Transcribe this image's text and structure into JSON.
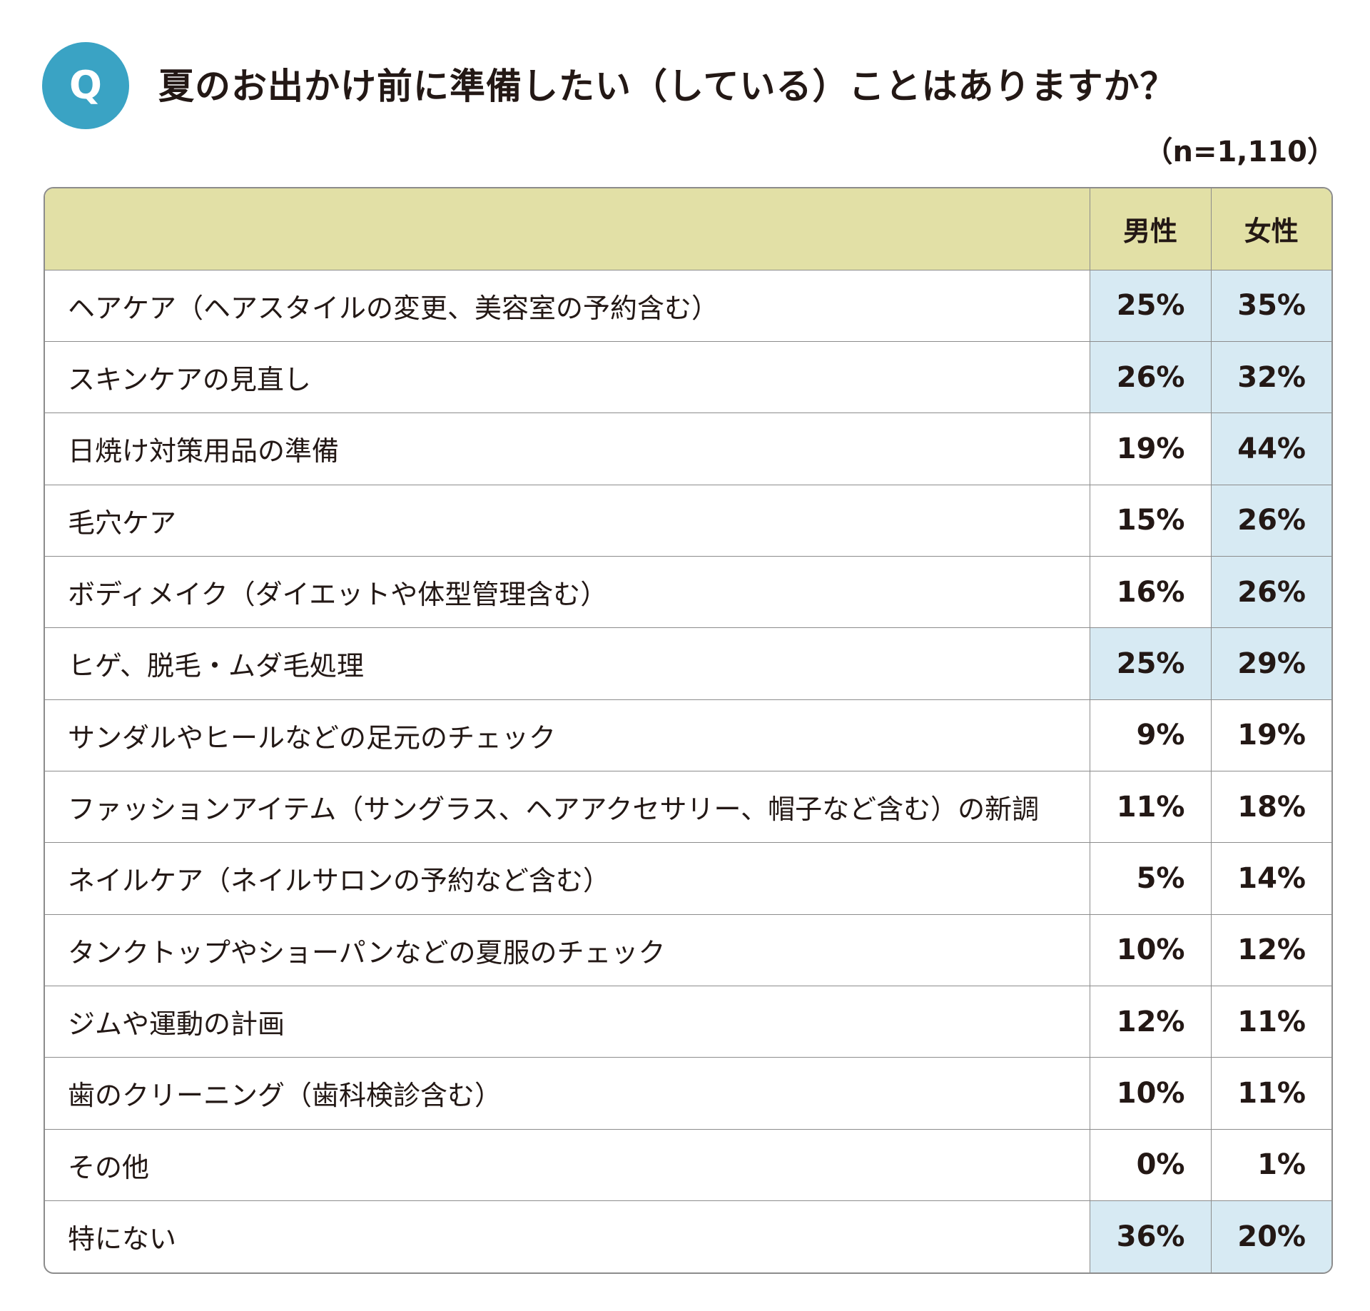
{
  "badge": "Q",
  "title": "夏のお出かけ前に準備したい（している）ことはありますか？",
  "sample_size": "（n=1,110）",
  "colors": {
    "badge": "#3aa3c4",
    "header_bg": "#e2e0a6",
    "highlight_bg": "#d7eaf3",
    "border": "#8c8c8c"
  },
  "chart_data": {
    "type": "table",
    "title": "夏のお出かけ前に準備したい（している）ことはありますか？",
    "columns": [
      "",
      "男性",
      "女性"
    ],
    "rows": [
      {
        "label": "ヘアケア（ヘアスタイルの変更、美容室の予約含む）",
        "male": "25%",
        "female": "35%",
        "male_hl": true,
        "female_hl": true
      },
      {
        "label": "スキンケアの見直し",
        "male": "26%",
        "female": "32%",
        "male_hl": true,
        "female_hl": true
      },
      {
        "label": "日焼け対策用品の準備",
        "male": "19%",
        "female": "44%",
        "male_hl": false,
        "female_hl": true
      },
      {
        "label": "毛穴ケア",
        "male": "15%",
        "female": "26%",
        "male_hl": false,
        "female_hl": true
      },
      {
        "label": "ボディメイク（ダイエットや体型管理含む）",
        "male": "16%",
        "female": "26%",
        "male_hl": false,
        "female_hl": true
      },
      {
        "label": "ヒゲ、脱毛・ムダ毛処理",
        "male": "25%",
        "female": "29%",
        "male_hl": true,
        "female_hl": true
      },
      {
        "label": "サンダルやヒールなどの足元のチェック",
        "male": "9%",
        "female": "19%",
        "male_hl": false,
        "female_hl": false
      },
      {
        "label": "ファッションアイテム（サングラス、ヘアアクセサリー、帽子など含む）の新調",
        "male": "11%",
        "female": "18%",
        "male_hl": false,
        "female_hl": false
      },
      {
        "label": "ネイルケア（ネイルサロンの予約など含む）",
        "male": "5%",
        "female": "14%",
        "male_hl": false,
        "female_hl": false
      },
      {
        "label": "タンクトップやショーパンなどの夏服のチェック",
        "male": "10%",
        "female": "12%",
        "male_hl": false,
        "female_hl": false
      },
      {
        "label": "ジムや運動の計画",
        "male": "12%",
        "female": "11%",
        "male_hl": false,
        "female_hl": false
      },
      {
        "label": "歯のクリーニング（歯科検診含む）",
        "male": "10%",
        "female": "11%",
        "male_hl": false,
        "female_hl": false
      },
      {
        "label": "その他",
        "male": "0%",
        "female": "1%",
        "male_hl": false,
        "female_hl": false
      },
      {
        "label": "特にない",
        "male": "36%",
        "female": "20%",
        "male_hl": true,
        "female_hl": true
      }
    ]
  }
}
